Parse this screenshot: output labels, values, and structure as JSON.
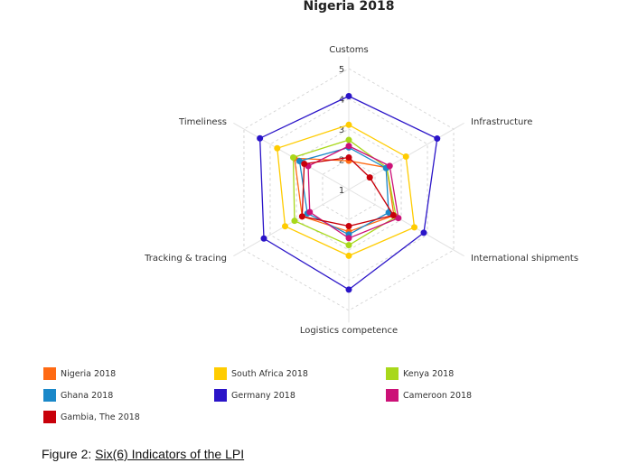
{
  "chart_data": {
    "type": "radar",
    "title": "Nigeria 2018",
    "axes": [
      "Customs",
      "Infrastructure",
      "International shipments",
      "Logistics competence",
      "Tracking & tracing",
      "Timeliness"
    ],
    "ticks": [
      "1",
      "2",
      "3",
      "4",
      "5"
    ],
    "range": [
      1,
      5
    ],
    "series": [
      {
        "name": "Nigeria 2018",
        "color": "#ff6a13",
        "values": [
          1.95,
          2.45,
          2.72,
          2.39,
          2.78,
          3.07
        ]
      },
      {
        "name": "South Africa 2018",
        "color": "#ffcc00",
        "values": [
          3.14,
          3.18,
          3.5,
          3.19,
          3.43,
          3.73
        ]
      },
      {
        "name": "Kenya 2018",
        "color": "#a8d81a",
        "values": [
          2.64,
          2.45,
          2.8,
          2.84,
          3.07,
          3.12
        ]
      },
      {
        "name": "Ghana 2018",
        "color": "#1a88c9",
        "values": [
          2.39,
          2.42,
          2.52,
          2.49,
          2.58,
          2.88
        ]
      },
      {
        "name": "Germany 2018",
        "color": "#2a14c8",
        "values": [
          4.09,
          4.37,
          3.86,
          4.31,
          4.24,
          4.39
        ]
      },
      {
        "name": "Cameroon 2018",
        "color": "#cc1177",
        "values": [
          2.44,
          2.56,
          2.89,
          2.61,
          2.49,
          2.55
        ]
      },
      {
        "name": "Gambia, The 2018",
        "color": "#c8000a",
        "values": [
          2.06,
          1.8,
          2.7,
          2.21,
          2.78,
          2.7
        ]
      }
    ],
    "legend_position": "bottom",
    "grid": true
  },
  "caption": {
    "prefix": "Figure 2: ",
    "text": "Six(6) Indicators of the LPI"
  }
}
